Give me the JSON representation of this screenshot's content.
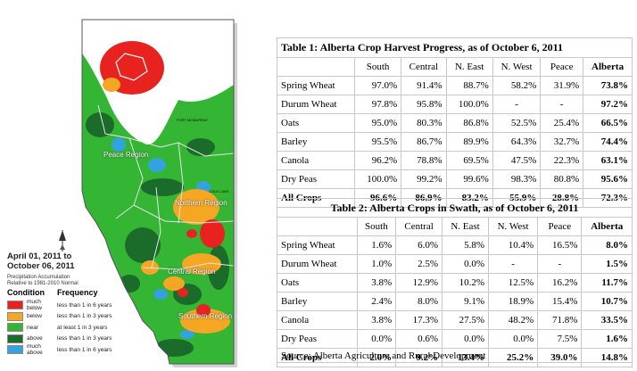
{
  "map": {
    "date_line1": "April 01, 2011 to",
    "date_line2": "October 06, 2011",
    "precip_line1": "Precipitation Accumulation",
    "precip_line2": "Relative to 1981-2010 Normal",
    "legend": {
      "condition_header": "Condition",
      "frequency_header": "Frequency",
      "rows": [
        {
          "condition": "much below",
          "frequency": "less than 1 in 6 years",
          "color": "#e8231f"
        },
        {
          "condition": "below",
          "frequency": "less than 1 in 3 years",
          "color": "#f5a623"
        },
        {
          "condition": "near",
          "frequency": "at least 1 in 3 years",
          "color": "#34b534"
        },
        {
          "condition": "above",
          "frequency": "less than 1 in 3 years",
          "color": "#1b6b2a"
        },
        {
          "condition": "much above",
          "frequency": "less than 1 in 6 years",
          "color": "#35a2e0"
        }
      ]
    },
    "regions": {
      "peace": "Peace Region",
      "northern": "Northern Region",
      "central": "Central Region",
      "southern": "Southern Region"
    },
    "towns": [
      "FORT MCMURRAY",
      "COLD LAKE"
    ],
    "colors": {
      "land": "#34b534",
      "dark_green": "#1b6b2a",
      "orange": "#f5a623",
      "red": "#e8231f",
      "blue": "#35a2e0",
      "outside": "#ffffff"
    }
  },
  "table1": {
    "title": "Table 1:  Alberta Crop Harvest Progress, as of October 6, 2011",
    "columns": [
      "South",
      "Central",
      "N. East",
      "N. West",
      "Peace",
      "Alberta"
    ],
    "rows": [
      {
        "label": "Spring Wheat",
        "values": [
          "97.0%",
          "91.4%",
          "88.7%",
          "58.2%",
          "31.9%",
          "73.8%"
        ]
      },
      {
        "label": "Durum Wheat",
        "values": [
          "97.8%",
          "95.8%",
          "100.0%",
          "-",
          "-",
          "97.2%"
        ]
      },
      {
        "label": "Oats",
        "values": [
          "95.0%",
          "80.3%",
          "86.8%",
          "52.5%",
          "25.4%",
          "66.5%"
        ]
      },
      {
        "label": "Barley",
        "values": [
          "95.5%",
          "86.7%",
          "89.9%",
          "64.3%",
          "32.7%",
          "74.4%"
        ]
      },
      {
        "label": "Canola",
        "values": [
          "96.2%",
          "78.8%",
          "69.5%",
          "47.5%",
          "22.3%",
          "63.1%"
        ]
      },
      {
        "label": "Dry Peas",
        "values": [
          "100.0%",
          "99.2%",
          "99.6%",
          "98.3%",
          "80.8%",
          "95.6%"
        ]
      },
      {
        "label": "All Crops",
        "values": [
          "96.6%",
          "86.9%",
          "83.2%",
          "55.9%",
          "28.8%",
          "72.3%"
        ]
      }
    ]
  },
  "table2": {
    "title": "Table 2:  Alberta Crops in Swath, as of October 6, 2011",
    "columns": [
      "South",
      "Central",
      "N. East",
      "N. West",
      "Peace",
      "Alberta"
    ],
    "rows": [
      {
        "label": "Spring Wheat",
        "values": [
          "1.6%",
          "6.0%",
          "5.8%",
          "10.4%",
          "16.5%",
          "8.0%"
        ]
      },
      {
        "label": "Durum Wheat",
        "values": [
          "1.0%",
          "2.5%",
          "0.0%",
          "-",
          "-",
          "1.5%"
        ]
      },
      {
        "label": "Oats",
        "values": [
          "3.8%",
          "12.9%",
          "10.2%",
          "12.5%",
          "16.2%",
          "11.7%"
        ]
      },
      {
        "label": "Barley",
        "values": [
          "2.4%",
          "8.0%",
          "9.1%",
          "18.9%",
          "15.4%",
          "10.7%"
        ]
      },
      {
        "label": "Canola",
        "values": [
          "3.8%",
          "17.3%",
          "27.5%",
          "48.2%",
          "71.8%",
          "33.5%"
        ]
      },
      {
        "label": "Dry Peas",
        "values": [
          "0.0%",
          "0.6%",
          "0.0%",
          "0.0%",
          "7.5%",
          "1.6%"
        ]
      },
      {
        "label": "All Crops",
        "values": [
          "2.0%",
          "9.2%",
          "13.4%",
          "25.2%",
          "39.0%",
          "14.8%"
        ]
      }
    ]
  },
  "source": "Source: Alberta Agriculture and Rural Development"
}
